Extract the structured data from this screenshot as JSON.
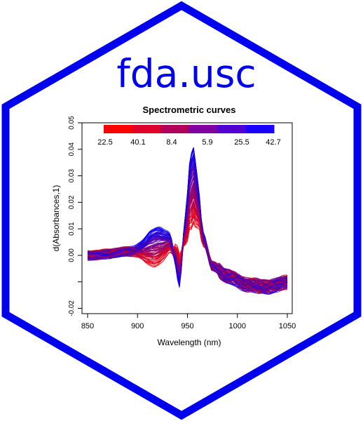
{
  "logo": {
    "text": "fda.usc",
    "border_color": "#0000EE",
    "text_color": "#0000EE"
  },
  "chart_data": {
    "type": "line",
    "title": "Spectrometric curves",
    "xlabel": "Wavelength (nm)",
    "ylabel": "d(Absorbances,1)",
    "xlim": [
      850,
      1050
    ],
    "ylim": [
      -0.022,
      0.05
    ],
    "x_ticks": [
      "850",
      "900",
      "950",
      "1000",
      "1050"
    ],
    "y_ticks": [
      "-0.02",
      "0.00",
      "0.01",
      "0.02",
      "0.03",
      "0.04",
      "0.05"
    ],
    "y_tick_values": [
      -0.02,
      0.0,
      0.01,
      0.02,
      0.03,
      0.04,
      0.05
    ],
    "y_minor_tick_values": [
      -0.01
    ],
    "grid": false,
    "legend": {
      "placement": "top",
      "labels": [
        "22.5",
        "40.1",
        "8.4",
        "5.9",
        "25.5",
        "42.7"
      ],
      "colors": [
        "#FF0000",
        "#E0002A",
        "#B0005A",
        "#7F00A0",
        "#5000D0",
        "#1A00FF"
      ]
    },
    "series_colors": {
      "low": "#FF0000",
      "high": "#0000FF"
    },
    "approx_mean_profile": {
      "x": [
        850,
        870,
        890,
        905,
        915,
        925,
        932,
        938,
        942,
        948,
        953,
        956,
        960,
        966,
        975,
        990,
        1010,
        1030,
        1050
      ],
      "y": [
        0.0,
        0.0005,
        0.0015,
        0.002,
        0.003,
        0.004,
        0.005,
        0.0,
        -0.006,
        0.01,
        0.024,
        0.027,
        0.02,
        0.006,
        -0.004,
        -0.008,
        -0.011,
        -0.012,
        -0.01
      ]
    }
  }
}
